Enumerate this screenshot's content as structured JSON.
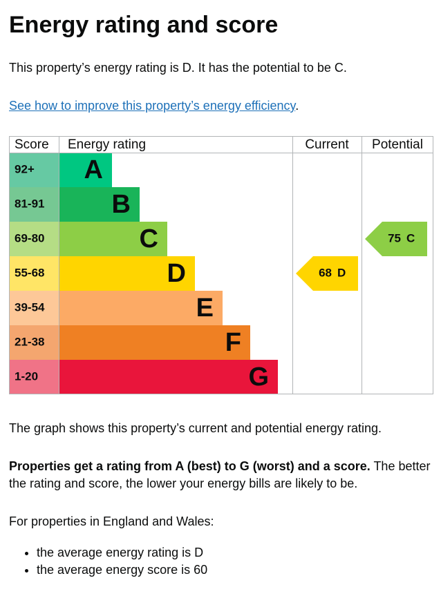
{
  "title": "Energy rating and score",
  "intro": "This property’s energy rating is D. It has the potential to be C.",
  "link": {
    "text": "See how to improve this property’s energy efficiency",
    "after": "."
  },
  "chart": {
    "headers": [
      "Score",
      "Energy rating",
      "Current",
      "Potential"
    ],
    "bands": [
      {
        "score": "92+",
        "letter": "A",
        "color": "#00c781",
        "score_color": "#66c9a3"
      },
      {
        "score": "81-91",
        "letter": "B",
        "color": "#19b459",
        "score_color": "#76c893"
      },
      {
        "score": "69-80",
        "letter": "C",
        "color": "#8dce46",
        "score_color": "#b5dd85"
      },
      {
        "score": "55-68",
        "letter": "D",
        "color": "#ffd500",
        "score_color": "#ffe566"
      },
      {
        "score": "39-54",
        "letter": "E",
        "color": "#fcaa65",
        "score_color": "#fdc898"
      },
      {
        "score": "21-38",
        "letter": "F",
        "color": "#ef8023",
        "score_color": "#f4a66f"
      },
      {
        "score": "1-20",
        "letter": "G",
        "color": "#e9153b",
        "score_color": "#f07387"
      }
    ],
    "current": {
      "score": 68,
      "rating": "D"
    },
    "potential": {
      "score": 75,
      "rating": "C"
    }
  },
  "caption": "The graph shows this property’s current and potential energy rating.",
  "explanation": {
    "bold": "Properties get a rating from A (best) to G (worst) and a score.",
    "rest": "The better the rating and score, the lower your energy bills are likely to be."
  },
  "region_intro": "For properties in England and Wales:",
  "bullets": [
    "the average energy rating is D",
    "the average energy score is 60"
  ]
}
